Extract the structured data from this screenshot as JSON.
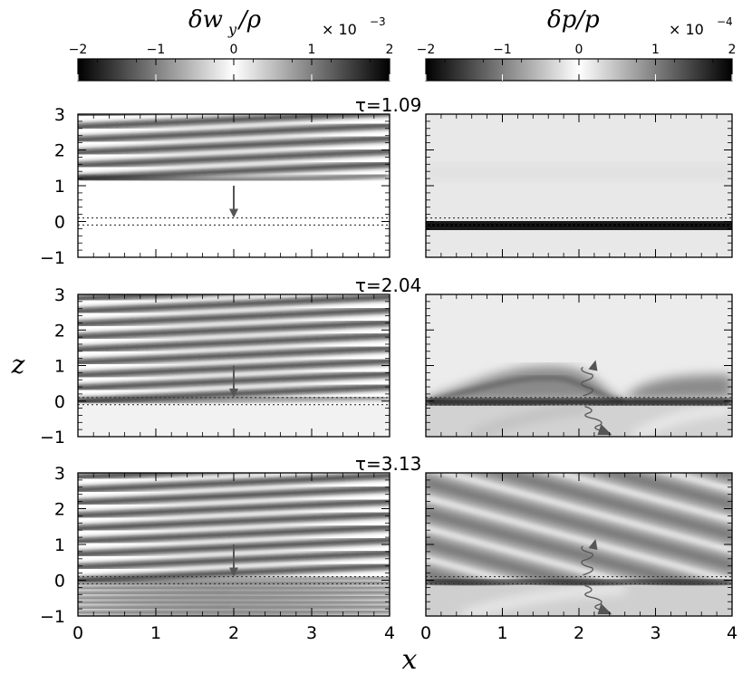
{
  "chart_data": {
    "type": "heatmap",
    "colorbars": [
      {
        "label": "δw_y / ρ",
        "label_main": "δw",
        "label_sub": "y",
        "label_tail": "/ρ",
        "scale_text": "× 10",
        "scale_exp": "−3",
        "range": [
          -2,
          2
        ],
        "ticks": [
          "−2",
          "−1",
          "0",
          "1",
          "2"
        ],
        "colormap": "gray"
      },
      {
        "label": "δp / p",
        "label_main": "δp/p",
        "scale_text": "× 10",
        "scale_exp": "−4",
        "range": [
          -2,
          2
        ],
        "ticks": [
          "−2",
          "−1",
          "0",
          "1",
          "2"
        ],
        "colormap": "gray"
      }
    ],
    "xlabel": "x",
    "ylabel": "z",
    "xlim": [
      0,
      4
    ],
    "ylim": [
      -1,
      3
    ],
    "xticks": [
      "0",
      "1",
      "2",
      "3",
      "4"
    ],
    "yticks": [
      "3",
      "2",
      "1",
      "0",
      "−1"
    ],
    "columns": [
      "δw_y/ρ",
      "δp/p"
    ],
    "rows": [
      {
        "tau_label": "τ=1.09",
        "tau": 1.09
      },
      {
        "tau_label": "τ=2.04",
        "tau": 2.04
      },
      {
        "tau_label": "τ=3.13",
        "tau": 3.13
      }
    ],
    "dotted_lines_z": [
      0.1,
      -0.1
    ],
    "arrow_x": 2.0,
    "arrow_z_from": [
      1.0,
      1.0,
      1.0
    ],
    "arrow_z_to": [
      0.1,
      0.1,
      0.1
    ]
  },
  "colors": {
    "black": "#000000",
    "white": "#ffffff",
    "mid_gray": "#bdbdbd",
    "arrow": "#555555"
  }
}
